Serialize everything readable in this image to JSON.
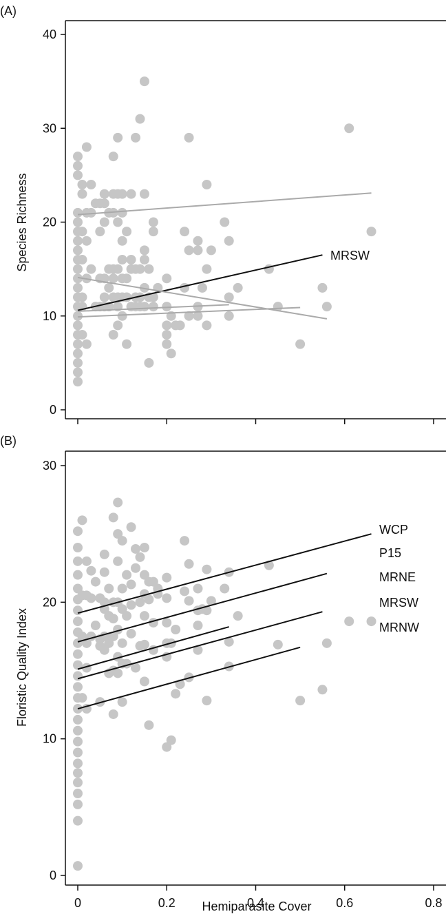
{
  "chart_data": [
    {
      "panel": "(A)",
      "type": "scatter",
      "ylabel": "Species Richness",
      "xlim": [
        0,
        0.8
      ],
      "ylim": [
        0,
        40
      ],
      "yticks": [
        0,
        10,
        20,
        30,
        40
      ],
      "xticks": [
        0,
        0.2,
        0.4,
        0.6,
        0.8
      ],
      "grid": false,
      "point_color": "#c6c6c6",
      "points": [
        [
          0,
          3
        ],
        [
          0,
          4
        ],
        [
          0,
          5
        ],
        [
          0,
          6
        ],
        [
          0,
          7
        ],
        [
          0,
          8
        ],
        [
          0,
          9
        ],
        [
          0,
          10
        ],
        [
          0,
          11
        ],
        [
          0,
          12
        ],
        [
          0,
          13
        ],
        [
          0,
          14
        ],
        [
          0,
          15
        ],
        [
          0,
          16
        ],
        [
          0,
          17
        ],
        [
          0,
          18
        ],
        [
          0,
          19
        ],
        [
          0,
          20
        ],
        [
          0,
          21
        ],
        [
          0,
          25
        ],
        [
          0,
          26
        ],
        [
          0,
          27
        ],
        [
          0.01,
          24
        ],
        [
          0.01,
          23
        ],
        [
          0.01,
          19
        ],
        [
          0.01,
          16
        ],
        [
          0.01,
          12
        ],
        [
          0.01,
          11
        ],
        [
          0.01,
          8
        ],
        [
          0.02,
          28
        ],
        [
          0.02,
          21
        ],
        [
          0.02,
          18
        ],
        [
          0.02,
          14
        ],
        [
          0.02,
          7
        ],
        [
          0.03,
          24
        ],
        [
          0.03,
          21
        ],
        [
          0.03,
          15
        ],
        [
          0.04,
          22
        ],
        [
          0.04,
          11
        ],
        [
          0.05,
          22
        ],
        [
          0.05,
          19
        ],
        [
          0.05,
          14
        ],
        [
          0.05,
          11
        ],
        [
          0.06,
          23
        ],
        [
          0.06,
          22
        ],
        [
          0.06,
          20
        ],
        [
          0.06,
          14
        ],
        [
          0.06,
          12
        ],
        [
          0.06,
          11
        ],
        [
          0.07,
          21
        ],
        [
          0.07,
          15
        ],
        [
          0.07,
          13
        ],
        [
          0.07,
          11
        ],
        [
          0.08,
          27
        ],
        [
          0.08,
          23
        ],
        [
          0.08,
          21
        ],
        [
          0.08,
          15
        ],
        [
          0.08,
          14
        ],
        [
          0.08,
          12
        ],
        [
          0.08,
          8
        ],
        [
          0.09,
          29
        ],
        [
          0.09,
          23
        ],
        [
          0.09,
          20
        ],
        [
          0.09,
          15
        ],
        [
          0.09,
          12
        ],
        [
          0.09,
          11
        ],
        [
          0.09,
          9
        ],
        [
          0.1,
          23
        ],
        [
          0.1,
          21
        ],
        [
          0.1,
          18
        ],
        [
          0.1,
          16
        ],
        [
          0.1,
          14
        ],
        [
          0.1,
          12
        ],
        [
          0.1,
          10
        ],
        [
          0.11,
          19
        ],
        [
          0.11,
          14
        ],
        [
          0.11,
          12
        ],
        [
          0.11,
          7
        ],
        [
          0.12,
          23
        ],
        [
          0.12,
          16
        ],
        [
          0.12,
          15
        ],
        [
          0.12,
          11
        ],
        [
          0.13,
          29
        ],
        [
          0.13,
          15
        ],
        [
          0.13,
          12
        ],
        [
          0.13,
          11
        ],
        [
          0.14,
          31
        ],
        [
          0.14,
          15
        ],
        [
          0.14,
          12
        ],
        [
          0.14,
          11
        ],
        [
          0.15,
          35
        ],
        [
          0.15,
          23
        ],
        [
          0.15,
          17
        ],
        [
          0.15,
          16
        ],
        [
          0.15,
          13
        ],
        [
          0.15,
          11
        ],
        [
          0.16,
          5
        ],
        [
          0.16,
          12
        ],
        [
          0.16,
          15
        ],
        [
          0.17,
          20
        ],
        [
          0.17,
          19
        ],
        [
          0.17,
          12
        ],
        [
          0.17,
          11
        ],
        [
          0.18,
          13
        ],
        [
          0.2,
          14
        ],
        [
          0.2,
          11
        ],
        [
          0.2,
          9
        ],
        [
          0.2,
          8
        ],
        [
          0.2,
          7
        ],
        [
          0.21,
          10
        ],
        [
          0.21,
          6
        ],
        [
          0.22,
          9
        ],
        [
          0.23,
          9
        ],
        [
          0.24,
          19
        ],
        [
          0.24,
          13
        ],
        [
          0.25,
          29
        ],
        [
          0.25,
          17
        ],
        [
          0.25,
          10
        ],
        [
          0.27,
          18
        ],
        [
          0.27,
          17
        ],
        [
          0.27,
          11
        ],
        [
          0.27,
          10
        ],
        [
          0.28,
          13
        ],
        [
          0.29,
          24
        ],
        [
          0.29,
          15
        ],
        [
          0.29,
          9
        ],
        [
          0.3,
          17
        ],
        [
          0.33,
          20
        ],
        [
          0.34,
          18
        ],
        [
          0.34,
          12
        ],
        [
          0.34,
          10
        ],
        [
          0.36,
          13
        ],
        [
          0.43,
          15
        ],
        [
          0.45,
          11
        ],
        [
          0.5,
          7
        ],
        [
          0.55,
          13
        ],
        [
          0.56,
          11
        ],
        [
          0.61,
          30
        ],
        [
          0.66,
          19
        ]
      ],
      "fits": [
        {
          "name": "MRSW",
          "x": [
            0,
            0.55
          ],
          "y": [
            10.6,
            16.5
          ],
          "color": "#111111"
        },
        {
          "name": "",
          "x": [
            0,
            0.66
          ],
          "y": [
            20.8,
            23.1
          ],
          "color": "#aaaaaa"
        },
        {
          "name": "",
          "x": [
            0,
            0.56
          ],
          "y": [
            14.1,
            9.7
          ],
          "color": "#aaaaaa"
        },
        {
          "name": "",
          "x": [
            0,
            0.5
          ],
          "y": [
            9.9,
            10.9
          ],
          "color": "#aaaaaa"
        },
        {
          "name": "",
          "x": [
            0,
            0.34
          ],
          "y": [
            10.5,
            11.2
          ],
          "color": "#aaaaaa"
        }
      ]
    },
    {
      "panel": "(B)",
      "type": "scatter",
      "xlabel": "Hemiparasite Cover",
      "ylabel": "Floristic Quality Index",
      "xlim": [
        0,
        0.8
      ],
      "ylim": [
        0,
        30
      ],
      "yticks": [
        0,
        10,
        20,
        30
      ],
      "xticks": [
        0,
        0.2,
        0.4,
        0.6,
        0.8
      ],
      "xticklabels": [
        "0",
        "0.2",
        "0.4",
        "0.6",
        "0.8"
      ],
      "grid": false,
      "point_color": "#c6c6c6",
      "points": [
        [
          0,
          0.7
        ],
        [
          0,
          4
        ],
        [
          0,
          5.2
        ],
        [
          0,
          6
        ],
        [
          0,
          6.8
        ],
        [
          0,
          7.5
        ],
        [
          0,
          8.2
        ],
        [
          0,
          9
        ],
        [
          0,
          9.8
        ],
        [
          0,
          10.6
        ],
        [
          0,
          11.4
        ],
        [
          0,
          12.2
        ],
        [
          0,
          13
        ],
        [
          0,
          13.8
        ],
        [
          0,
          14.6
        ],
        [
          0,
          15.4
        ],
        [
          0,
          16.2
        ],
        [
          0,
          17
        ],
        [
          0,
          17.8
        ],
        [
          0,
          18.6
        ],
        [
          0,
          19.4
        ],
        [
          0,
          20.2
        ],
        [
          0,
          21
        ],
        [
          0,
          22
        ],
        [
          0,
          23
        ],
        [
          0,
          24
        ],
        [
          0,
          25.2
        ],
        [
          0.01,
          26
        ],
        [
          0.01,
          20.5
        ],
        [
          0.01,
          17.5
        ],
        [
          0.01,
          13
        ],
        [
          0.02,
          23
        ],
        [
          0.02,
          20.5
        ],
        [
          0.02,
          17
        ],
        [
          0.02,
          15.2
        ],
        [
          0.02,
          12.2
        ],
        [
          0.03,
          22.3
        ],
        [
          0.03,
          20.3
        ],
        [
          0.03,
          17.5
        ],
        [
          0.04,
          18.3
        ],
        [
          0.04,
          21.5
        ],
        [
          0.05,
          20.3
        ],
        [
          0.05,
          17.3
        ],
        [
          0.05,
          16.8
        ],
        [
          0.05,
          12.7
        ],
        [
          0.06,
          23.5
        ],
        [
          0.06,
          22.2
        ],
        [
          0.06,
          20
        ],
        [
          0.06,
          19.5
        ],
        [
          0.06,
          17.5
        ],
        [
          0.06,
          16.5
        ],
        [
          0.07,
          21
        ],
        [
          0.07,
          19
        ],
        [
          0.07,
          17
        ],
        [
          0.07,
          14.8
        ],
        [
          0.08,
          26.2
        ],
        [
          0.08,
          20
        ],
        [
          0.08,
          18.8
        ],
        [
          0.08,
          17.5
        ],
        [
          0.08,
          15
        ],
        [
          0.08,
          11.8
        ],
        [
          0.09,
          27.3
        ],
        [
          0.09,
          25
        ],
        [
          0.09,
          23
        ],
        [
          0.09,
          20
        ],
        [
          0.09,
          18
        ],
        [
          0.09,
          16
        ],
        [
          0.09,
          14.8
        ],
        [
          0.1,
          24.5
        ],
        [
          0.1,
          21
        ],
        [
          0.1,
          19.5
        ],
        [
          0.1,
          17
        ],
        [
          0.1,
          15.5
        ],
        [
          0.1,
          12.7
        ],
        [
          0.11,
          22
        ],
        [
          0.11,
          19
        ],
        [
          0.11,
          15.5
        ],
        [
          0.12,
          25.5
        ],
        [
          0.12,
          21.3
        ],
        [
          0.12,
          19.8
        ],
        [
          0.12,
          17.7
        ],
        [
          0.13,
          23.9
        ],
        [
          0.13,
          22.5
        ],
        [
          0.13,
          15.2
        ],
        [
          0.14,
          23.3
        ],
        [
          0.14,
          20
        ],
        [
          0.14,
          16.8
        ],
        [
          0.15,
          24
        ],
        [
          0.15,
          22
        ],
        [
          0.15,
          20.6
        ],
        [
          0.15,
          19
        ],
        [
          0.15,
          16.9
        ],
        [
          0.15,
          14.2
        ],
        [
          0.16,
          21.5
        ],
        [
          0.16,
          20.2
        ],
        [
          0.16,
          11
        ],
        [
          0.17,
          21.5
        ],
        [
          0.17,
          18.5
        ],
        [
          0.17,
          16.5
        ],
        [
          0.18,
          21
        ],
        [
          0.18,
          20.6
        ],
        [
          0.2,
          21.8
        ],
        [
          0.2,
          20.3
        ],
        [
          0.2,
          18.5
        ],
        [
          0.2,
          17
        ],
        [
          0.2,
          16
        ],
        [
          0.2,
          9.4
        ],
        [
          0.21,
          17
        ],
        [
          0.21,
          9.9
        ],
        [
          0.22,
          18
        ],
        [
          0.22,
          13.3
        ],
        [
          0.23,
          14
        ],
        [
          0.24,
          24.5
        ],
        [
          0.24,
          20.8
        ],
        [
          0.25,
          22.8
        ],
        [
          0.25,
          20.1
        ],
        [
          0.25,
          14.5
        ],
        [
          0.27,
          21
        ],
        [
          0.27,
          19.4
        ],
        [
          0.27,
          18.3
        ],
        [
          0.27,
          16.5
        ],
        [
          0.28,
          19.5
        ],
        [
          0.29,
          22.4
        ],
        [
          0.29,
          19.4
        ],
        [
          0.29,
          12.8
        ],
        [
          0.3,
          20.1
        ],
        [
          0.33,
          21
        ],
        [
          0.34,
          22.2
        ],
        [
          0.34,
          17.1
        ],
        [
          0.34,
          15.3
        ],
        [
          0.36,
          19
        ],
        [
          0.43,
          22.7
        ],
        [
          0.45,
          16.9
        ],
        [
          0.5,
          12.8
        ],
        [
          0.55,
          13.6
        ],
        [
          0.56,
          17
        ],
        [
          0.61,
          18.6
        ],
        [
          0.66,
          18.6
        ]
      ],
      "fits": [
        {
          "name": "WCP",
          "x": [
            0,
            0.66
          ],
          "y": [
            19.2,
            25.0
          ]
        },
        {
          "name": "P15",
          "x": [
            0,
            0.56
          ],
          "y": [
            17.1,
            22.1
          ]
        },
        {
          "name": "MRNE",
          "x": [
            0,
            0.34
          ],
          "y": [
            15.1,
            18.2
          ]
        },
        {
          "name": "MRSW",
          "x": [
            0,
            0.55
          ],
          "y": [
            14.4,
            19.3
          ]
        },
        {
          "name": "MRNW",
          "x": [
            0,
            0.5
          ],
          "y": [
            12.2,
            16.7
          ]
        }
      ]
    }
  ]
}
